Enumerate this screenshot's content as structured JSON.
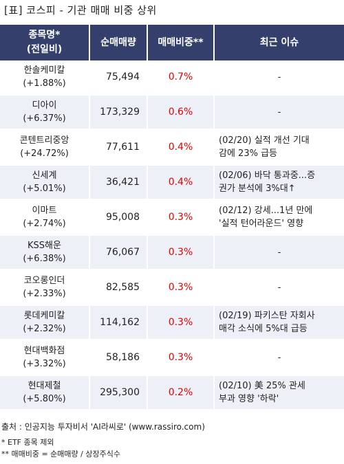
{
  "title": "[표] 코스피 - 기관 매매 비중 상위",
  "header": {
    "name_line1": "종목명*",
    "name_line2": "(전일비)",
    "volume": "순매매량",
    "ratio": "매매비중**",
    "issue": "최근 이슈"
  },
  "rows": [
    {
      "name": "한솔케미칼",
      "change": "(+1.88%)",
      "volume": "75,494",
      "ratio": "0.7%",
      "issue1": "-",
      "issue2": ""
    },
    {
      "name": "디아이",
      "change": "(+6.37%)",
      "volume": "173,329",
      "ratio": "0.6%",
      "issue1": "-",
      "issue2": ""
    },
    {
      "name": "콘텐트리중앙",
      "change": "(+24.72%)",
      "volume": "77,611",
      "ratio": "0.4%",
      "issue1": "(02/20) 실적 개선 기대",
      "issue2": "감에 23% 급등"
    },
    {
      "name": "신세계",
      "change": "(+5.01%)",
      "volume": "36,421",
      "ratio": "0.4%",
      "issue1": "(02/06) 바닥 통과중...증",
      "issue2": "권가 분석에 3%대↑"
    },
    {
      "name": "이마트",
      "change": "(+2.74%)",
      "volume": "95,008",
      "ratio": "0.3%",
      "issue1": "(02/12) 강세...1년 만에",
      "issue2": "'실적 턴어라운드' 영향"
    },
    {
      "name": "KSS해운",
      "change": "(+6.38%)",
      "volume": "76,067",
      "ratio": "0.3%",
      "issue1": "-",
      "issue2": ""
    },
    {
      "name": "코오롱인더",
      "change": "(+2.33%)",
      "volume": "82,585",
      "ratio": "0.3%",
      "issue1": "-",
      "issue2": ""
    },
    {
      "name": "롯데케미칼",
      "change": "(+2.32%)",
      "volume": "114,162",
      "ratio": "0.3%",
      "issue1": "(02/19) 파키스탄 자회사",
      "issue2": "매각 소식에 5%대 급등"
    },
    {
      "name": "현대백화점",
      "change": "(+3.32%)",
      "volume": "58,186",
      "ratio": "0.3%",
      "issue1": "-",
      "issue2": ""
    },
    {
      "name": "현대제철",
      "change": "(+5.80%)",
      "volume": "295,300",
      "ratio": "0.2%",
      "issue1": "(02/10) 美 25% 관세",
      "issue2": "부과 영향 '하락'"
    }
  ],
  "footer": {
    "source": "출처 : 인공지능 투자비서 'AI라씨로' (www.rassiro.com)",
    "note1": "* ETF 종목 제외",
    "note2": "** 매매비중 = 순매매량 / 상장주식수"
  },
  "colors": {
    "header_bg": "#343f6b",
    "stripe_bg": "#eef0f7",
    "ratio_text": "#e60000"
  }
}
